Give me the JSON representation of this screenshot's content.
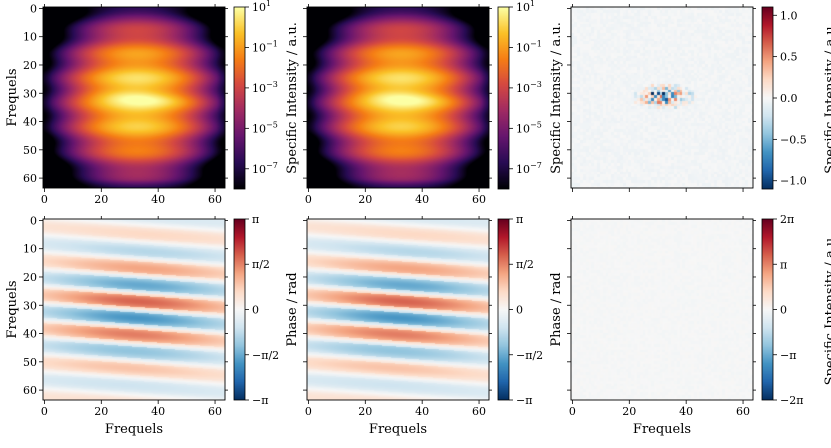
{
  "chart_data": [
    {
      "type": "heatmap",
      "panel": "top-left",
      "field": "amplitude",
      "colormap": "inferno",
      "scale": "log",
      "zlim": [
        1e-08,
        10
      ],
      "grid": "64x64",
      "x_ticks": [
        "0",
        "20",
        "40",
        "60"
      ],
      "x_tick_values": [
        0,
        20,
        40,
        60
      ],
      "y_ticks": [
        "0",
        "10",
        "20",
        "30",
        "40",
        "50",
        "60"
      ],
      "y_tick_values": [
        0,
        10,
        20,
        30,
        40,
        50,
        60
      ],
      "xlabel": "",
      "ylabel": "Frequels",
      "colorbar": {
        "label": "Specific Intensity / a.u.",
        "tick_values": [
          10,
          0.1,
          0.001,
          1e-05,
          1e-07
        ],
        "ticks": [
          {
            "base": "10",
            "exp": "1"
          },
          {
            "base": "10",
            "exp": "−1"
          },
          {
            "base": "10",
            "exp": "−3"
          },
          {
            "base": "10",
            "exp": "−5"
          },
          {
            "base": "10",
            "exp": "−7"
          }
        ]
      }
    },
    {
      "type": "heatmap",
      "panel": "top-middle",
      "field": "amplitude",
      "colormap": "inferno",
      "scale": "log",
      "zlim": [
        1e-08,
        10
      ],
      "grid": "64x64",
      "x_ticks": [
        "0",
        "20",
        "40",
        "60"
      ],
      "x_tick_values": [
        0,
        20,
        40,
        60
      ],
      "y_ticks": [],
      "y_tick_values": [
        0,
        10,
        20,
        30,
        40,
        50,
        60
      ],
      "xlabel": "",
      "ylabel": "",
      "colorbar": {
        "label": "Specific Intensity / a.u.",
        "tick_values": [
          10,
          0.1,
          0.001,
          1e-05,
          1e-07
        ],
        "ticks": [
          {
            "base": "10",
            "exp": "1"
          },
          {
            "base": "10",
            "exp": "−1"
          },
          {
            "base": "10",
            "exp": "−3"
          },
          {
            "base": "10",
            "exp": "−5"
          },
          {
            "base": "10",
            "exp": "−7"
          }
        ]
      }
    },
    {
      "type": "heatmap",
      "panel": "top-right",
      "field": "amplitude-difference",
      "colormap": "RdBu_r",
      "scale": "linear",
      "zlim": [
        -1.1,
        1.1
      ],
      "grid": "64x64",
      "x_ticks": [],
      "x_tick_values": [
        0,
        20,
        40,
        60
      ],
      "y_ticks": [],
      "y_tick_values": [
        0,
        10,
        20,
        30,
        40,
        50,
        60
      ],
      "xlabel": "",
      "ylabel": "",
      "colorbar": {
        "label": "Specific Intensity / a.u.",
        "tick_values": [
          1,
          0.5,
          0,
          -0.5,
          -1
        ],
        "ticks": [
          {
            "text": "1.0"
          },
          {
            "text": "0.5"
          },
          {
            "text": "0.0"
          },
          {
            "text": "−0.5"
          },
          {
            "text": "−1.0"
          }
        ]
      }
    },
    {
      "type": "heatmap",
      "panel": "bottom-left",
      "field": "phase",
      "colormap": "RdBu_r",
      "scale": "linear",
      "zlim": [
        -3.14159,
        3.14159
      ],
      "grid": "64x64",
      "x_ticks": [
        "0",
        "20",
        "40",
        "60"
      ],
      "x_tick_values": [
        0,
        20,
        40,
        60
      ],
      "y_ticks": [
        "0",
        "10",
        "20",
        "30",
        "40",
        "50",
        "60"
      ],
      "y_tick_values": [
        0,
        10,
        20,
        30,
        40,
        50,
        60
      ],
      "xlabel": "Frequels",
      "ylabel": "Frequels",
      "colorbar": {
        "label": "Phase / rad",
        "tick_values": [
          3.14159,
          1.5708,
          0,
          -1.5708,
          -3.14159
        ],
        "ticks": [
          {
            "text": "π"
          },
          {
            "text": "π/2"
          },
          {
            "text": "0"
          },
          {
            "text": "−π/2"
          },
          {
            "text": "−π"
          }
        ]
      }
    },
    {
      "type": "heatmap",
      "panel": "bottom-middle",
      "field": "phase",
      "colormap": "RdBu_r",
      "scale": "linear",
      "zlim": [
        -3.14159,
        3.14159
      ],
      "grid": "64x64",
      "x_ticks": [
        "0",
        "20",
        "40",
        "60"
      ],
      "x_tick_values": [
        0,
        20,
        40,
        60
      ],
      "y_ticks": [],
      "y_tick_values": [
        0,
        10,
        20,
        30,
        40,
        50,
        60
      ],
      "xlabel": "Frequels",
      "ylabel": "",
      "colorbar": {
        "label": "Phase / rad",
        "tick_values": [
          3.14159,
          1.5708,
          0,
          -1.5708,
          -3.14159
        ],
        "ticks": [
          {
            "text": "π"
          },
          {
            "text": "π/2"
          },
          {
            "text": "0"
          },
          {
            "text": "−π/2"
          },
          {
            "text": "−π"
          }
        ]
      }
    },
    {
      "type": "heatmap",
      "panel": "bottom-right",
      "field": "phase-difference",
      "colormap": "RdBu_r",
      "scale": "linear",
      "zlim": [
        -6.28318,
        6.28318
      ],
      "grid": "64x64",
      "x_ticks": [
        "0",
        "20",
        "40",
        "60"
      ],
      "x_tick_values": [
        0,
        20,
        40,
        60
      ],
      "y_ticks": [],
      "y_tick_values": [
        0,
        10,
        20,
        30,
        40,
        50,
        60
      ],
      "xlabel": "Frequels",
      "ylabel": "",
      "colorbar": {
        "label": "Specific Intensity / a.u.",
        "tick_values": [
          6.28318,
          3.14159,
          0,
          -3.14159,
          -6.28318
        ],
        "ticks": [
          {
            "text": "2π"
          },
          {
            "text": "π"
          },
          {
            "text": "0"
          },
          {
            "text": "−π"
          },
          {
            "text": "−2π"
          }
        ]
      }
    }
  ]
}
